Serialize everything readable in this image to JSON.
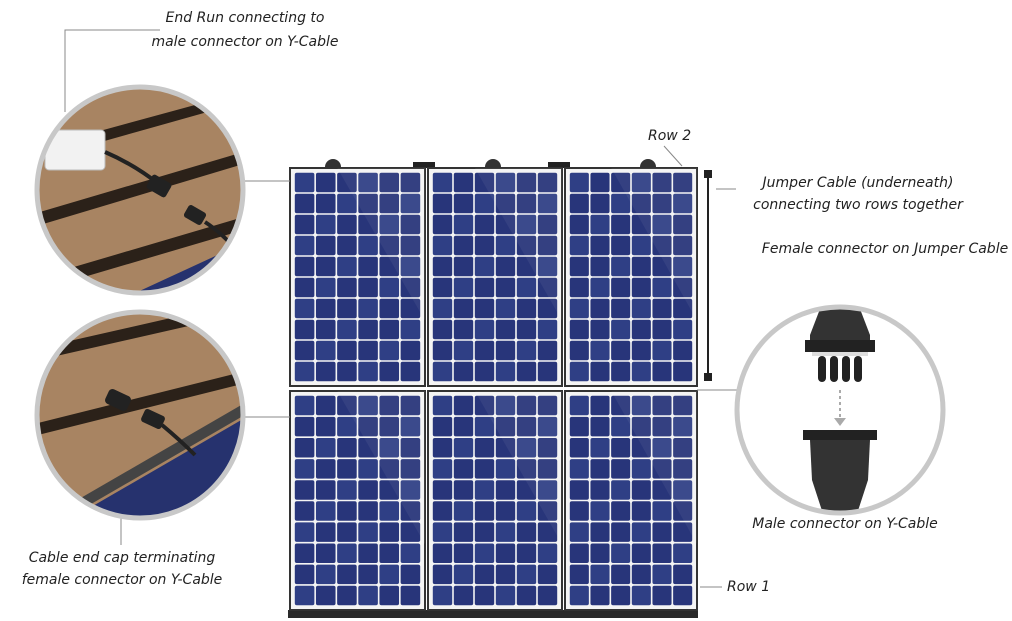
{
  "labels": {
    "end_run": [
      "End Run connecting to",
      "male connector on Y-Cable"
    ],
    "row_2": "Row 2",
    "jumper_cable": [
      "Jumper Cable (underneath)",
      "connecting two rows together"
    ],
    "female_connector": "Female connector on Jumper Cable",
    "male_connector": "Male connector on Y-Cable",
    "end_cap": [
      "Cable end cap terminating",
      "female connector on Y-Cable"
    ],
    "row_1": "Row 1"
  }
}
